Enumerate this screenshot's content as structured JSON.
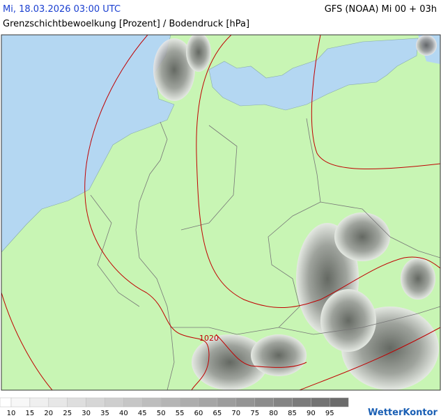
{
  "header": {
    "datetime": "Mi, 18.03.2026 03:00 UTC",
    "model": "GFS (NOAA) Mi 00 + 03h",
    "subtitle": "Grenzschichtbewoelkung [Prozent] / Bodendruck [hPa]"
  },
  "map": {
    "isobar_labels": [
      "1020"
    ]
  },
  "legend": {
    "ticks": [
      10,
      15,
      20,
      25,
      30,
      35,
      40,
      45,
      50,
      55,
      60,
      65,
      70,
      75,
      80,
      85,
      90,
      95
    ],
    "colors": [
      "#ffffff",
      "#f7f7f7",
      "#efefef",
      "#e7e7e7",
      "#dedede",
      "#d6d6d6",
      "#cecece",
      "#c6c6c6",
      "#bdbdbd",
      "#b5b5b5",
      "#adadad",
      "#a5a5a5",
      "#9c9c9c",
      "#949494",
      "#8c8c8c",
      "#848484",
      "#7b7b7b",
      "#737373",
      "#6b6b6b"
    ]
  },
  "logo": "WetterKontor"
}
